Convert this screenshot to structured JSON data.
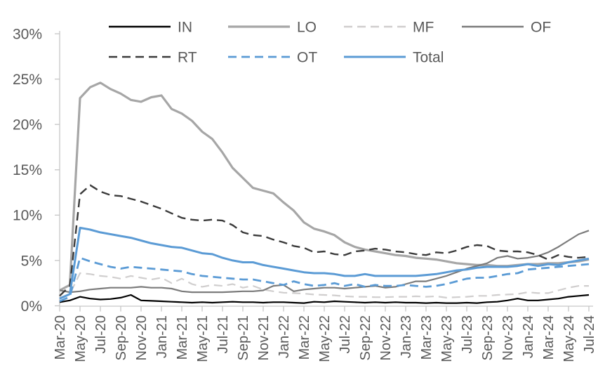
{
  "chart_data": {
    "type": "line",
    "title": "",
    "xlabel": "",
    "ylabel": "",
    "ylim": [
      0,
      30
    ],
    "grid": false,
    "legend_position": "top",
    "text_color": "#595959",
    "axis_color": "#c6c6c6",
    "y_ticks": [
      "0%",
      "5%",
      "10%",
      "15%",
      "20%",
      "25%",
      "30%"
    ],
    "x_tick_labels": [
      "Mar-20",
      "May-20",
      "Jul-20",
      "Sep-20",
      "Nov-20",
      "Jan-21",
      "Mar-21",
      "May-21",
      "Jul-21",
      "Sep-21",
      "Nov-21",
      "Jan-22",
      "Mar-22",
      "May-22",
      "Jul-22",
      "Sep-22",
      "Nov-22",
      "Jan-23",
      "Mar-23",
      "May-23",
      "Jul-23",
      "Sep-23",
      "Nov-23",
      "Jan-24",
      "Mar-24",
      "May-24",
      "Jul-24"
    ],
    "x": [
      "Mar-20",
      "Apr-20",
      "May-20",
      "Jun-20",
      "Jul-20",
      "Aug-20",
      "Sep-20",
      "Oct-20",
      "Nov-20",
      "Dec-20",
      "Jan-21",
      "Feb-21",
      "Mar-21",
      "Apr-21",
      "May-21",
      "Jun-21",
      "Jul-21",
      "Aug-21",
      "Sep-21",
      "Oct-21",
      "Nov-21",
      "Dec-21",
      "Jan-22",
      "Feb-22",
      "Mar-22",
      "Apr-22",
      "May-22",
      "Jun-22",
      "Jul-22",
      "Aug-22",
      "Sep-22",
      "Oct-22",
      "Nov-22",
      "Dec-22",
      "Jan-23",
      "Feb-23",
      "Mar-23",
      "Apr-23",
      "May-23",
      "Jun-23",
      "Jul-23",
      "Aug-23",
      "Sep-23",
      "Oct-23",
      "Nov-23",
      "Dec-23",
      "Jan-24",
      "Feb-24",
      "Mar-24",
      "Apr-24",
      "May-24",
      "Jun-24",
      "Jul-24"
    ],
    "series": [
      {
        "name": "IN",
        "color": "#000000",
        "style": "solid",
        "width": 2.2,
        "values": [
          0.4,
          0.6,
          1.0,
          0.8,
          0.7,
          0.75,
          0.9,
          1.2,
          0.6,
          0.55,
          0.5,
          0.45,
          0.4,
          0.35,
          0.4,
          0.35,
          0.4,
          0.45,
          0.4,
          0.4,
          0.35,
          0.4,
          0.4,
          0.35,
          0.3,
          0.45,
          0.4,
          0.5,
          0.45,
          0.4,
          0.35,
          0.4,
          0.35,
          0.4,
          0.35,
          0.35,
          0.3,
          0.35,
          0.3,
          0.3,
          0.35,
          0.3,
          0.4,
          0.45,
          0.6,
          0.8,
          0.6,
          0.6,
          0.7,
          0.8,
          1.0,
          1.1,
          1.2
        ]
      },
      {
        "name": "LO",
        "color": "#a6a6a6",
        "style": "solid",
        "width": 3.2,
        "values": [
          1.7,
          2.3,
          22.9,
          24.1,
          24.6,
          23.9,
          23.4,
          22.7,
          22.5,
          23.0,
          23.2,
          21.7,
          21.2,
          20.4,
          19.2,
          18.4,
          16.9,
          15.2,
          14.1,
          13.0,
          12.7,
          12.4,
          11.4,
          10.5,
          9.2,
          8.5,
          8.2,
          7.8,
          7.0,
          6.5,
          6.2,
          6.0,
          5.8,
          5.6,
          5.5,
          5.3,
          5.2,
          5.1,
          4.9,
          4.7,
          4.6,
          4.5,
          4.5,
          4.4,
          4.4,
          4.5,
          4.6,
          4.6,
          4.7,
          4.7,
          4.8,
          4.9,
          5.1
        ]
      },
      {
        "name": "MF",
        "color": "#d0cece",
        "style": "dashed",
        "width": 2.2,
        "values": [
          0.9,
          1.3,
          3.6,
          3.5,
          3.3,
          3.2,
          3.0,
          3.3,
          3.1,
          2.9,
          3.1,
          2.5,
          3.0,
          2.4,
          2.1,
          2.3,
          2.2,
          2.4,
          2.0,
          2.2,
          1.8,
          1.6,
          1.45,
          1.4,
          1.35,
          1.25,
          1.2,
          1.15,
          1.05,
          1.0,
          1.0,
          0.95,
          0.95,
          1.0,
          1.0,
          1.05,
          1.0,
          1.05,
          0.9,
          0.95,
          1.0,
          1.1,
          1.1,
          1.2,
          1.25,
          1.3,
          1.5,
          1.4,
          1.4,
          1.7,
          2.0,
          2.2,
          2.2
        ]
      },
      {
        "name": "OF",
        "color": "#7b7b7b",
        "style": "solid",
        "width": 2.2,
        "values": [
          1.7,
          1.5,
          1.6,
          1.8,
          1.9,
          2.0,
          2.0,
          2.0,
          2.1,
          2.0,
          2.0,
          1.9,
          1.6,
          1.5,
          1.5,
          1.5,
          1.5,
          1.55,
          1.6,
          1.6,
          1.7,
          2.2,
          2.3,
          1.6,
          1.8,
          1.9,
          2.0,
          2.0,
          1.9,
          2.0,
          2.1,
          2.2,
          2.0,
          2.1,
          2.4,
          2.7,
          2.7,
          3.0,
          3.3,
          3.7,
          4.1,
          4.4,
          4.7,
          5.3,
          5.5,
          5.2,
          5.3,
          5.5,
          5.9,
          6.5,
          7.2,
          7.9,
          8.3
        ]
      },
      {
        "name": "RT",
        "color": "#3b3b3b",
        "style": "dashed",
        "width": 2.4,
        "values": [
          1.1,
          2.2,
          12.3,
          13.3,
          12.6,
          12.2,
          12.1,
          11.8,
          11.5,
          11.1,
          10.7,
          10.2,
          9.7,
          9.5,
          9.4,
          9.5,
          9.4,
          8.9,
          8.1,
          7.8,
          7.7,
          7.3,
          7.0,
          6.6,
          6.4,
          5.9,
          6.0,
          5.7,
          5.6,
          6.0,
          6.1,
          6.3,
          6.2,
          6.0,
          5.9,
          5.7,
          5.6,
          5.9,
          5.8,
          6.1,
          6.5,
          6.7,
          6.6,
          6.1,
          6.0,
          6.0,
          5.9,
          5.6,
          5.1,
          5.6,
          5.4,
          5.3,
          5.4
        ]
      },
      {
        "name": "OT",
        "color": "#5b9bd5",
        "style": "dashed",
        "width": 2.8,
        "values": [
          0.5,
          1.0,
          5.3,
          4.9,
          4.6,
          4.3,
          4.1,
          4.3,
          4.2,
          4.1,
          4.0,
          3.9,
          3.8,
          3.5,
          3.3,
          3.2,
          3.1,
          3.0,
          2.9,
          2.9,
          2.7,
          2.5,
          2.3,
          2.7,
          2.4,
          2.2,
          2.3,
          2.5,
          2.2,
          2.4,
          2.1,
          2.3,
          2.2,
          2.2,
          2.3,
          2.2,
          2.1,
          2.2,
          2.4,
          2.7,
          3.0,
          3.1,
          3.1,
          3.3,
          3.5,
          3.6,
          4.0,
          4.1,
          4.2,
          4.3,
          4.4,
          4.5,
          4.6
        ]
      },
      {
        "name": "Total",
        "color": "#5b9bd5",
        "style": "solid",
        "width": 3,
        "values": [
          0.8,
          1.3,
          8.6,
          8.4,
          8.1,
          7.9,
          7.7,
          7.5,
          7.2,
          6.9,
          6.7,
          6.5,
          6.4,
          6.1,
          5.8,
          5.7,
          5.3,
          5.0,
          4.8,
          4.8,
          4.5,
          4.3,
          4.1,
          3.9,
          3.7,
          3.6,
          3.6,
          3.5,
          3.3,
          3.3,
          3.5,
          3.3,
          3.3,
          3.3,
          3.3,
          3.3,
          3.4,
          3.5,
          3.7,
          3.9,
          4.0,
          4.2,
          4.3,
          4.3,
          4.3,
          4.4,
          4.6,
          4.4,
          4.6,
          4.5,
          4.8,
          5.0,
          5.2
        ]
      }
    ],
    "legend_rows": [
      [
        "IN",
        "LO",
        "MF",
        "OF"
      ],
      [
        "RT",
        "OT",
        "Total"
      ]
    ]
  }
}
